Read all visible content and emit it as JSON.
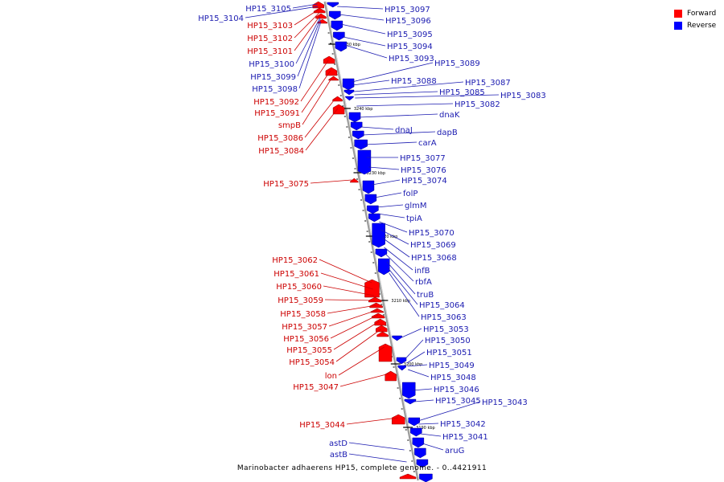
{
  "caption": "Marinobacter adhaerens HP15, complete genome. - 0..4421911",
  "legend": {
    "forward_label": "Forward",
    "reverse_label": "Reverse",
    "forward_color": "#ff0000",
    "reverse_color": "#0000ff"
  },
  "colors": {
    "forward_label": "#cc0000",
    "reverse_label": "#1a1ab0",
    "axis": "#999999"
  },
  "scale_ticks": [
    "3230 kbp",
    "3240 kbp",
    "3230 kbp",
    "3220 kbp",
    "3210 kbp",
    "3200 kbp",
    "3190 kbp"
  ],
  "forward_genes": [
    "HP15_3105",
    "HP15_3104",
    "HP15_3103",
    "HP15_3102",
    "HP15_3101",
    "HP15_3100",
    "HP15_3099",
    "HP15_3098",
    "HP15_3092",
    "HP15_3091",
    "smpB",
    "HP15_3086",
    "HP15_3084",
    "HP15_3075",
    "HP15_3062",
    "HP15_3061",
    "HP15_3060",
    "HP15_3059",
    "HP15_3058",
    "HP15_3057",
    "HP15_3056",
    "HP15_3055",
    "HP15_3054",
    "lon",
    "HP15_3047",
    "HP15_3044",
    "astD",
    "astB"
  ],
  "reverse_genes": [
    "HP15_3097",
    "HP15_3096",
    "HP15_3095",
    "HP15_3094",
    "HP15_3093",
    "HP15_3089",
    "HP15_3088",
    "HP15_3087",
    "HP15_3085",
    "HP15_3083",
    "HP15_3082",
    "dnaK",
    "dnaJ",
    "dapB",
    "carA",
    "HP15_3077",
    "HP15_3076",
    "HP15_3074",
    "folP",
    "glmM",
    "tpiA",
    "HP15_3070",
    "HP15_3069",
    "HP15_3068",
    "infB",
    "rbfA",
    "truB",
    "HP15_3064",
    "HP15_3063",
    "HP15_3053",
    "HP15_3050",
    "HP15_3051",
    "HP15_3049",
    "HP15_3048",
    "HP15_3046",
    "HP15_3045",
    "HP15_3043",
    "HP15_3042",
    "HP15_3041",
    "aruG"
  ]
}
